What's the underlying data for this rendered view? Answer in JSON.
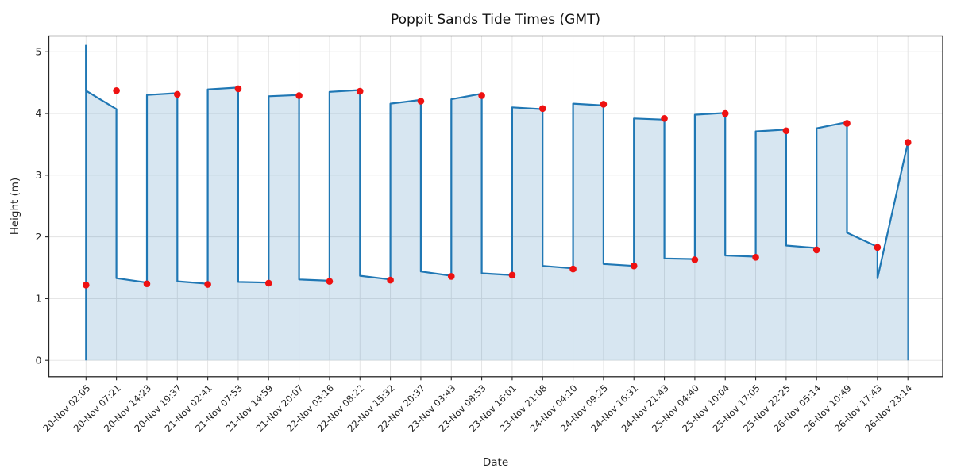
{
  "chart_data": {
    "type": "line",
    "title": "Poppit Sands Tide Times (GMT)",
    "xlabel": "Date",
    "ylabel": "Height (m)",
    "categories": [
      "20-Nov 02:05",
      "20-Nov 07:21",
      "20-Nov 14:23",
      "20-Nov 19:37",
      "21-Nov 02:41",
      "21-Nov 07:53",
      "21-Nov 14:59",
      "21-Nov 20:07",
      "22-Nov 03:16",
      "22-Nov 08:22",
      "22-Nov 15:32",
      "22-Nov 20:37",
      "23-Nov 03:43",
      "23-Nov 08:53",
      "23-Nov 16:01",
      "23-Nov 21:08",
      "24-Nov 04:10",
      "24-Nov 09:25",
      "24-Nov 16:31",
      "24-Nov 21:43",
      "25-Nov 04:40",
      "25-Nov 10:04",
      "25-Nov 17:05",
      "25-Nov 22:25",
      "26-Nov 05:14",
      "26-Nov 10:49",
      "26-Nov 17:43",
      "26-Nov 23:14"
    ],
    "yticks": [
      0,
      1,
      2,
      3,
      4,
      5
    ],
    "ylim": [
      -0.27,
      5.27
    ],
    "grid": true,
    "legend": false,
    "series": [
      {
        "name": "tide-curve",
        "type": "area-line",
        "color": "#1f77b4",
        "fill_color": "rgba(31,119,180,0.18)",
        "line_width": 2.2,
        "vertices": [
          [
            0,
            5.11
          ],
          [
            0,
            4.37
          ],
          [
            1,
            4.07
          ],
          [
            1,
            1.33
          ],
          [
            2,
            1.26
          ],
          [
            2,
            4.3
          ],
          [
            3,
            4.33
          ],
          [
            3,
            1.28
          ],
          [
            4,
            1.24
          ],
          [
            4,
            4.39
          ],
          [
            5,
            4.42
          ],
          [
            5,
            1.27
          ],
          [
            6,
            1.26
          ],
          [
            6,
            4.28
          ],
          [
            7,
            4.3
          ],
          [
            7,
            1.31
          ],
          [
            8,
            1.29
          ],
          [
            8,
            4.35
          ],
          [
            9,
            4.38
          ],
          [
            9,
            1.37
          ],
          [
            10,
            1.31
          ],
          [
            10,
            4.16
          ],
          [
            11,
            4.22
          ],
          [
            11,
            1.44
          ],
          [
            12,
            1.37
          ],
          [
            12,
            4.23
          ],
          [
            13,
            4.32
          ],
          [
            13,
            1.41
          ],
          [
            14,
            1.38
          ],
          [
            14,
            4.1
          ],
          [
            15,
            4.07
          ],
          [
            15,
            1.53
          ],
          [
            16,
            1.49
          ],
          [
            16,
            4.16
          ],
          [
            17,
            4.13
          ],
          [
            17,
            1.56
          ],
          [
            18,
            1.53
          ],
          [
            18,
            3.92
          ],
          [
            19,
            3.9
          ],
          [
            19,
            1.65
          ],
          [
            20,
            1.64
          ],
          [
            20,
            3.98
          ],
          [
            21,
            4.01
          ],
          [
            21,
            1.7
          ],
          [
            22,
            1.68
          ],
          [
            22,
            3.71
          ],
          [
            23,
            3.74
          ],
          [
            23,
            1.86
          ],
          [
            24,
            1.82
          ],
          [
            24,
            3.76
          ],
          [
            25,
            3.86
          ],
          [
            25,
            2.07
          ],
          [
            26,
            1.84
          ],
          [
            26,
            1.33
          ],
          [
            27,
            3.53
          ]
        ]
      },
      {
        "name": "tide-events",
        "type": "scatter",
        "color": "#ee1111",
        "marker": "circle",
        "marker_radius": 4.3,
        "values": [
          1.22,
          4.37,
          1.24,
          4.31,
          1.23,
          4.4,
          1.25,
          4.29,
          1.28,
          4.36,
          1.3,
          4.2,
          1.36,
          4.29,
          1.38,
          4.08,
          1.48,
          4.15,
          1.53,
          3.92,
          1.63,
          4.0,
          1.67,
          3.72,
          1.79,
          3.84,
          1.83,
          3.53
        ]
      }
    ],
    "colors": {
      "line": "#1f77b4",
      "fill": "rgba(31,119,180,0.18)",
      "markers": "#ee1111",
      "grid": "#e2e2e2",
      "spines": "#262626",
      "text": "#262626",
      "background": "#ffffff"
    }
  }
}
